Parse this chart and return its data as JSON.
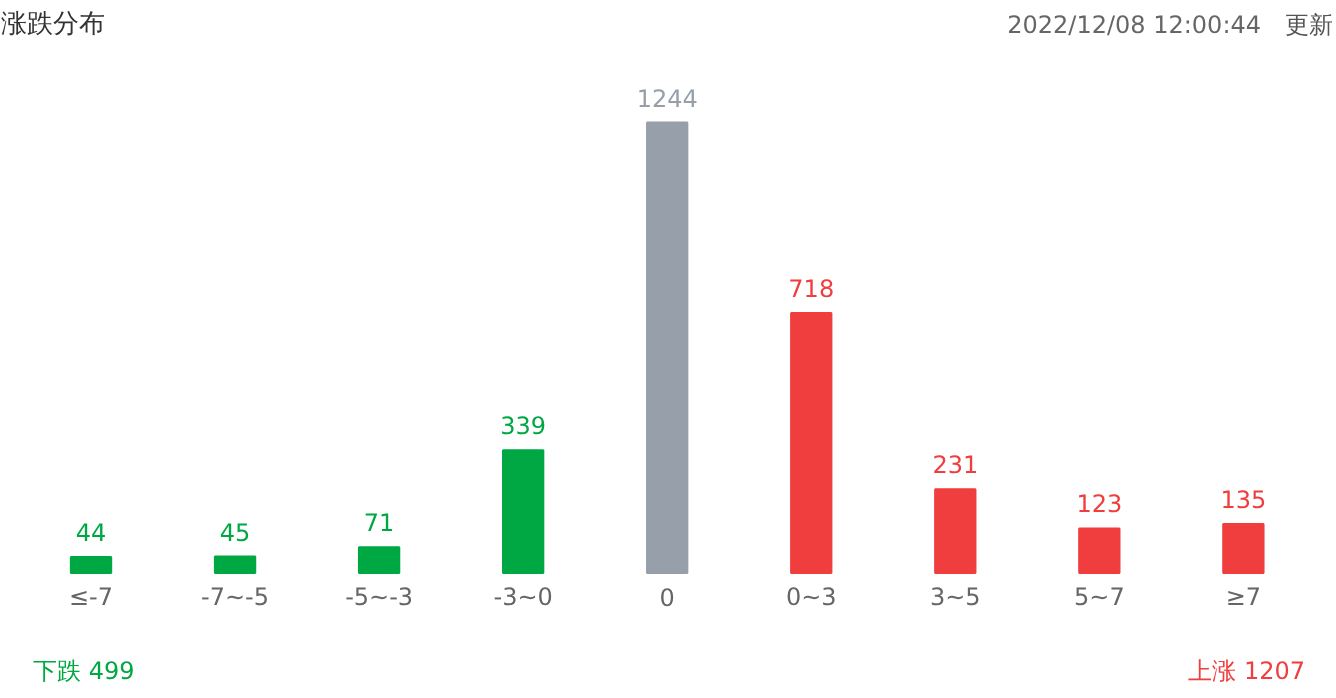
{
  "chart_data": {
    "type": "bar",
    "title": "涨跌分布",
    "subtitle": "2022/12/08 12:00:44",
    "categories": [
      "≤-7",
      "-7~-5",
      "-5~-3",
      "-3~0",
      "0",
      "0~3",
      "3~5",
      "5~7",
      "≥7"
    ],
    "values": [
      44,
      45,
      71,
      339,
      1244,
      718,
      231,
      123,
      135
    ],
    "colors": [
      "#00a843",
      "#00a843",
      "#00a843",
      "#00a843",
      "#97a0aa",
      "#f03e3e",
      "#f03e3e",
      "#f03e3e",
      "#f03e3e"
    ],
    "data_labels": true,
    "grid": false,
    "annotations": [
      "更新",
      "下跌 499",
      "上涨 1207"
    ]
  }
}
